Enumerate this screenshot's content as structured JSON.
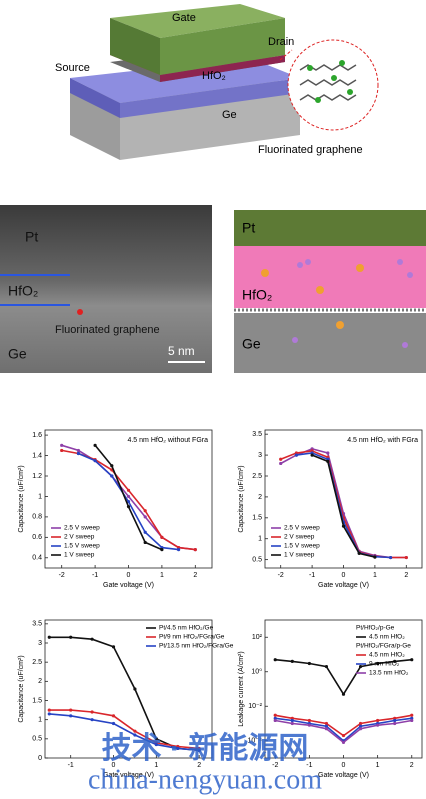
{
  "schematic": {
    "labels": [
      "Gate",
      "Drain",
      "Source",
      "HfO₂",
      "Ge",
      "Fluorinated graphene"
    ]
  },
  "tem": {
    "labels": [
      "Pt",
      "HfO₂",
      "Fluorinated graphene",
      "Ge",
      "5 nm"
    ]
  },
  "interface": {
    "labels": [
      "Pt",
      "HfO₂",
      "Ge"
    ]
  },
  "watermark": [
    "技术 · 新能源网",
    "china-nengyuan.com"
  ],
  "chart_data": [
    {
      "type": "line",
      "title": "4.5 nm HfO₂ without FGra",
      "xlabel": "Gate voltage (V)",
      "ylabel": "Capacitance (uF/cm²)",
      "xlim": [
        -2.5,
        2.5
      ],
      "xticks": [
        -2,
        -1,
        0,
        1,
        2
      ],
      "ylim": [
        0.3,
        1.65
      ],
      "yticks": [
        0.4,
        0.6,
        0.8,
        1.0,
        1.2,
        1.4,
        1.6
      ],
      "legend": "lower left",
      "x": [
        -2,
        -1.5,
        -1,
        -0.5,
        0,
        0.5,
        1,
        1.5,
        2
      ],
      "series": [
        {
          "name": "2.5 V sweep",
          "color": "#8e3fa8",
          "values": [
            1.5,
            1.45,
            1.35,
            1.2,
            1.0,
            0.8,
            0.6,
            0.5,
            0.48
          ]
        },
        {
          "name": "2 V sweep",
          "color": "#d9262b",
          "values": [
            1.45,
            1.42,
            1.36,
            1.26,
            1.06,
            0.86,
            0.6,
            0.5,
            0.48
          ]
        },
        {
          "name": "1.5 V sweep",
          "color": "#2643c4",
          "values": [
            null,
            1.42,
            1.35,
            1.2,
            0.95,
            0.65,
            0.5,
            0.48,
            null
          ]
        },
        {
          "name": "1 V sweep",
          "color": "#111111",
          "values": [
            null,
            null,
            1.5,
            1.3,
            0.9,
            0.55,
            0.48,
            null,
            null
          ]
        }
      ]
    },
    {
      "type": "line",
      "title": "4.5 nm HfO₂ with FGra",
      "xlabel": "Gate voltage (V)",
      "ylabel": "Capacitance (uF/cm²)",
      "xlim": [
        -2.5,
        2.5
      ],
      "xticks": [
        -2,
        -1,
        0,
        1,
        2
      ],
      "ylim": [
        0.3,
        3.6
      ],
      "yticks": [
        0.5,
        1.0,
        1.5,
        2.0,
        2.5,
        3.0,
        3.5
      ],
      "legend": "lower left",
      "x": [
        -2,
        -1.5,
        -1,
        -0.5,
        0,
        0.5,
        1,
        1.5,
        2
      ],
      "series": [
        {
          "name": "2.5 V sweep",
          "color": "#8e3fa8",
          "values": [
            2.8,
            3.0,
            3.15,
            3.05,
            1.6,
            0.7,
            0.6,
            0.55,
            0.55
          ]
        },
        {
          "name": "2 V sweep",
          "color": "#d9262b",
          "values": [
            2.9,
            3.05,
            3.1,
            2.95,
            1.5,
            0.68,
            0.58,
            0.55,
            0.55
          ]
        },
        {
          "name": "1.5 V sweep",
          "color": "#2643c4",
          "values": [
            null,
            3.0,
            3.05,
            2.9,
            1.4,
            0.66,
            0.57,
            0.55,
            null
          ]
        },
        {
          "name": "1 V sweep",
          "color": "#111111",
          "values": [
            null,
            null,
            3.0,
            2.85,
            1.3,
            0.65,
            0.56,
            null,
            null
          ]
        }
      ]
    },
    {
      "type": "line",
      "xlabel": "Gate voltage (V)",
      "ylabel": "Capacitance (uF/cm²)",
      "xlim": [
        -1.6,
        2.3
      ],
      "xticks": [
        -1,
        0,
        1,
        2
      ],
      "ylim": [
        0,
        3.6
      ],
      "yticks": [
        0.0,
        0.5,
        1.0,
        1.5,
        2.0,
        2.5,
        3.0,
        3.5
      ],
      "legend": "upper right",
      "x": [
        -1.5,
        -1,
        -0.5,
        0,
        0.5,
        1,
        1.5,
        2
      ],
      "series": [
        {
          "name": "Pt/4.5 nm HfO₂/Ge",
          "color": "#111111",
          "values": [
            3.15,
            3.15,
            3.1,
            2.9,
            1.8,
            0.5,
            0.25,
            0.2
          ]
        },
        {
          "name": "Pt/9 nm HfO₂/FGra/Ge",
          "color": "#d9262b",
          "values": [
            1.25,
            1.25,
            1.2,
            1.1,
            0.7,
            0.4,
            0.3,
            0.25
          ]
        },
        {
          "name": "Pt/13.5 nm HfO₂/FGra/Ge",
          "color": "#2643c4",
          "values": [
            1.15,
            1.1,
            1.0,
            0.9,
            0.6,
            0.35,
            0.25,
            0.2
          ]
        }
      ]
    },
    {
      "type": "line",
      "xlabel": "Gate voltage (V)",
      "ylabel": "Leakage current (A/cm²)",
      "log_y": true,
      "xlim": [
        -2.3,
        2.3
      ],
      "xticks": [
        -2,
        -1,
        0,
        1,
        2
      ],
      "ylim": [
        1e-05,
        1000
      ],
      "yticks": [
        {
          "value": 0.0001,
          "label": "10⁻⁴"
        },
        {
          "value": 0.01,
          "label": "10⁻²"
        },
        {
          "value": 1,
          "label": "10⁰"
        },
        {
          "value": 100,
          "label": "10²"
        }
      ],
      "legend": "upper right",
      "legend_titles": [
        "Pt/HfO₂/p-Ge",
        "Pt/HfO₂/FGra/p-Ge"
      ],
      "x": [
        -2,
        -1.5,
        -1,
        -0.5,
        0,
        0.5,
        1,
        1.5,
        2
      ],
      "series": [
        {
          "name": "4.5 nm HfO₂",
          "color": "#111111",
          "values": [
            5,
            4,
            3,
            2,
            0.05,
            2,
            3,
            4,
            5
          ]
        },
        {
          "name": "4.5 nm HfO₂",
          "color": "#d9262b",
          "values": [
            0.003,
            0.002,
            0.0015,
            0.001,
            0.0002,
            0.001,
            0.0015,
            0.002,
            0.003
          ]
        },
        {
          "name": "9 nm HfO₂",
          "color": "#2643c4",
          "values": [
            0.002,
            0.0015,
            0.001,
            0.0007,
            0.0001,
            0.0007,
            0.001,
            0.0015,
            0.002
          ]
        },
        {
          "name": "13.5 nm HfO₂",
          "color": "#8e3fa8",
          "values": [
            0.0015,
            0.001,
            0.0008,
            0.0005,
            8e-05,
            0.0005,
            0.0008,
            0.001,
            0.0015
          ]
        }
      ]
    }
  ]
}
